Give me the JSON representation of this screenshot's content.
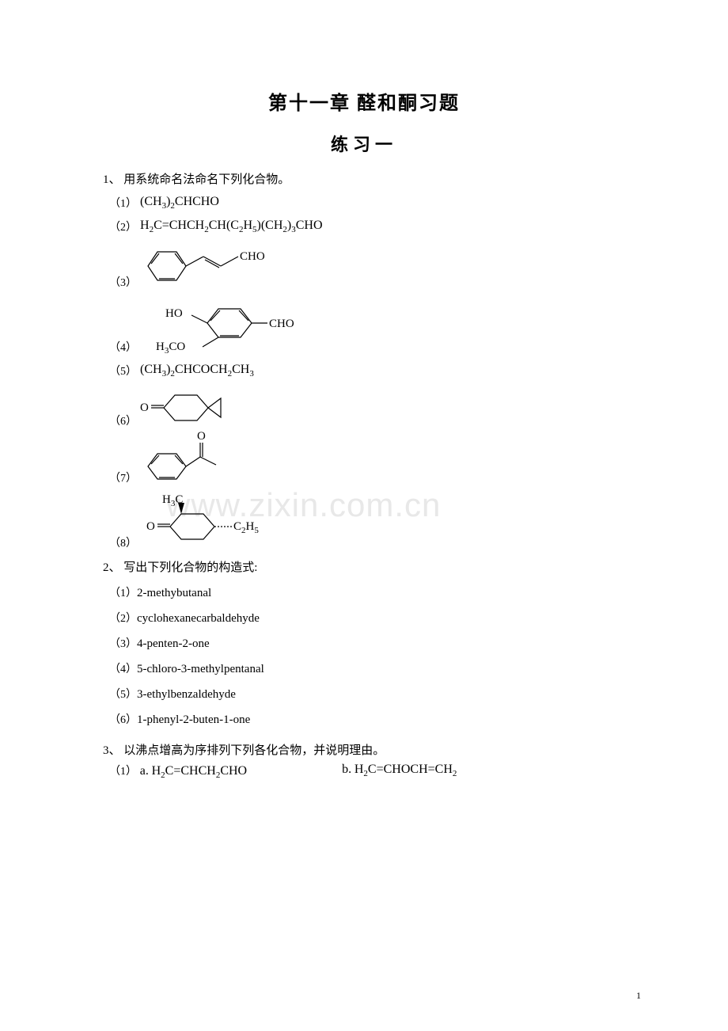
{
  "page": {
    "chapter_title": "第十一章  醛和酮习题",
    "section_title": "练习一",
    "watermark": "www.zixin.com.cn",
    "page_number": "1"
  },
  "q1": {
    "stem": "1、 用系统命名法命名下列化合物。",
    "items": [
      {
        "num": "（1）",
        "formula_html": "(CH<sub>3</sub>)<sub>2</sub>CHCHO"
      },
      {
        "num": "（2）",
        "formula_html": "H<sub>2</sub>C=CHCH<sub>2</sub>CH(C<sub>2</sub>H<sub>5</sub>)(CH<sub>2</sub>)<sub>3</sub>CHO"
      },
      {
        "num": "（3）",
        "structure": "cinnamaldehyde",
        "labels": {
          "cho": "CHO"
        }
      },
      {
        "num": "（4）",
        "structure": "vanillin_like",
        "labels": {
          "ho": "HO",
          "h3co": "H<sub>3</sub>CO",
          "cho": "CHO"
        }
      },
      {
        "num": "（5）",
        "formula_html": "(CH<sub>3</sub>)<sub>2</sub>CHCOCH<sub>2</sub>CH<sub>3</sub>"
      },
      {
        "num": "（6）",
        "structure": "spiro_ketone",
        "labels": {
          "o": "O"
        }
      },
      {
        "num": "（7）",
        "structure": "acetophenone",
        "labels": {
          "o": "O"
        }
      },
      {
        "num": "（8）",
        "structure": "cyclohexanone_sub",
        "labels": {
          "h3c": "H<sub>3</sub>C",
          "o": "O",
          "c2h5": "C<sub>2</sub>H<sub>5</sub>"
        }
      }
    ]
  },
  "q2": {
    "stem": "2、 写出下列化合物的构造式:",
    "items": [
      {
        "num": "（1）",
        "name": "2-methybutanal"
      },
      {
        "num": "（2）",
        "name": "cyclohexanecarbaldehyde"
      },
      {
        "num": "（3）",
        "name": "4-penten-2-one"
      },
      {
        "num": "（4）",
        "name": "5-chloro-3-methylpentanal"
      },
      {
        "num": "（5）",
        "name": "3-ethylbenzaldehyde"
      },
      {
        "num": "（6）",
        "name": "1-phenyl-2-buten-1-one"
      }
    ]
  },
  "q3": {
    "stem": "3、 以沸点增高为序排列下列各化合物，并说明理由。",
    "row1": {
      "num": "（1）",
      "a_label": "a.",
      "a_formula": "H<sub>2</sub>C=CHCH<sub>2</sub>CHO",
      "b_label": "b.",
      "b_formula": "H<sub>2</sub>C=CHOCH=CH<sub>2</sub>"
    }
  },
  "colors": {
    "text": "#000000",
    "watermark": "#e8e8e8",
    "background": "#ffffff",
    "stroke": "#000000"
  }
}
